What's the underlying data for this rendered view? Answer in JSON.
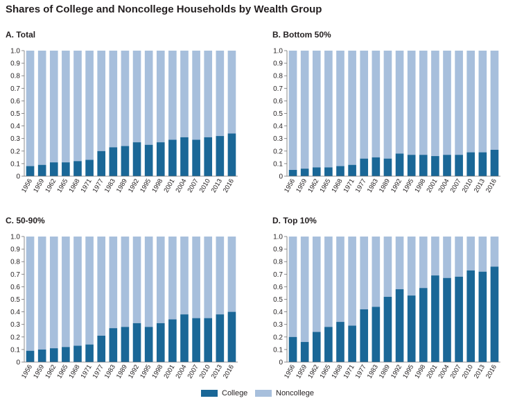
{
  "title": "Shares of College and Noncollege Households by Wealth Group",
  "colors": {
    "college": "#1a6797",
    "noncollege": "#a7bfdc",
    "axis": "#6d6e71",
    "text": "#231f20"
  },
  "legend": {
    "college": "College",
    "noncollege": "Noncollege"
  },
  "chart_data": [
    {
      "type": "bar",
      "stacked": true,
      "title": "A. Total",
      "categories": [
        "1956",
        "1959",
        "1962",
        "1965",
        "1968",
        "1971",
        "1977",
        "1983",
        "1989",
        "1992",
        "1995",
        "1998",
        "2001",
        "2004",
        "2007",
        "2010",
        "2013",
        "2016"
      ],
      "series": [
        {
          "name": "College",
          "values": [
            0.08,
            0.09,
            0.11,
            0.11,
            0.12,
            0.13,
            0.2,
            0.23,
            0.24,
            0.27,
            0.25,
            0.27,
            0.29,
            0.31,
            0.29,
            0.31,
            0.32,
            0.34
          ]
        },
        {
          "name": "Noncollege",
          "values": [
            0.92,
            0.91,
            0.89,
            0.89,
            0.88,
            0.87,
            0.8,
            0.77,
            0.76,
            0.73,
            0.75,
            0.73,
            0.71,
            0.69,
            0.71,
            0.69,
            0.68,
            0.66
          ]
        }
      ],
      "ylim": [
        0,
        1
      ],
      "yticks": [
        "0",
        "0.1",
        "0.2",
        "0.3",
        "0.4",
        "0.5",
        "0.6",
        "0.7",
        "0.8",
        "0.9",
        "1.0"
      ],
      "xlabel": "",
      "ylabel": "",
      "grid": false
    },
    {
      "type": "bar",
      "stacked": true,
      "title": "B. Bottom 50%",
      "categories": [
        "1956",
        "1959",
        "1962",
        "1965",
        "1968",
        "1971",
        "1977",
        "1983",
        "1989",
        "1992",
        "1995",
        "1998",
        "2001",
        "2004",
        "2007",
        "2010",
        "2013",
        "2016"
      ],
      "series": [
        {
          "name": "College",
          "values": [
            0.05,
            0.06,
            0.07,
            0.07,
            0.08,
            0.09,
            0.14,
            0.15,
            0.14,
            0.18,
            0.17,
            0.17,
            0.16,
            0.17,
            0.17,
            0.19,
            0.19,
            0.21
          ]
        },
        {
          "name": "Noncollege",
          "values": [
            0.95,
            0.94,
            0.93,
            0.93,
            0.92,
            0.91,
            0.86,
            0.85,
            0.86,
            0.82,
            0.83,
            0.83,
            0.84,
            0.83,
            0.83,
            0.81,
            0.81,
            0.79
          ]
        }
      ],
      "ylim": [
        0,
        1
      ],
      "yticks": [
        "0",
        "0.1",
        "0.2",
        "0.3",
        "0.4",
        "0.5",
        "0.6",
        "0.7",
        "0.8",
        "0.9",
        "1.0"
      ],
      "xlabel": "",
      "ylabel": "",
      "grid": false
    },
    {
      "type": "bar",
      "stacked": true,
      "title": "C. 50-90%",
      "categories": [
        "1956",
        "1959",
        "1962",
        "1965",
        "1968",
        "1971",
        "1977",
        "1983",
        "1989",
        "1992",
        "1995",
        "1998",
        "2001",
        "2004",
        "2007",
        "2010",
        "2013",
        "2016"
      ],
      "series": [
        {
          "name": "College",
          "values": [
            0.09,
            0.1,
            0.11,
            0.12,
            0.13,
            0.14,
            0.21,
            0.27,
            0.28,
            0.31,
            0.28,
            0.31,
            0.34,
            0.38,
            0.35,
            0.35,
            0.38,
            0.4
          ]
        },
        {
          "name": "Noncollege",
          "values": [
            0.91,
            0.9,
            0.89,
            0.88,
            0.87,
            0.86,
            0.79,
            0.73,
            0.72,
            0.69,
            0.72,
            0.69,
            0.66,
            0.62,
            0.65,
            0.65,
            0.62,
            0.6
          ]
        }
      ],
      "ylim": [
        0,
        1
      ],
      "yticks": [
        "0",
        "0.1",
        "0.2",
        "0.3",
        "0.4",
        "0.5",
        "0.6",
        "0.7",
        "0.8",
        "0.9",
        "1.0"
      ],
      "xlabel": "",
      "ylabel": "",
      "grid": false
    },
    {
      "type": "bar",
      "stacked": true,
      "title": "D. Top 10%",
      "categories": [
        "1956",
        "1959",
        "1962",
        "1965",
        "1968",
        "1971",
        "1977",
        "1983",
        "1989",
        "1992",
        "1995",
        "1998",
        "2001",
        "2004",
        "2007",
        "2010",
        "2013",
        "2016"
      ],
      "series": [
        {
          "name": "College",
          "values": [
            0.2,
            0.16,
            0.24,
            0.28,
            0.32,
            0.29,
            0.42,
            0.44,
            0.52,
            0.58,
            0.53,
            0.59,
            0.69,
            0.67,
            0.68,
            0.73,
            0.72,
            0.76
          ]
        },
        {
          "name": "Noncollege",
          "values": [
            0.8,
            0.84,
            0.76,
            0.72,
            0.68,
            0.71,
            0.58,
            0.56,
            0.48,
            0.42,
            0.47,
            0.41,
            0.31,
            0.33,
            0.32,
            0.27,
            0.28,
            0.24
          ]
        }
      ],
      "ylim": [
        0,
        1
      ],
      "yticks": [
        "0",
        "0.1",
        "0.2",
        "0.3",
        "0.4",
        "0.5",
        "0.6",
        "0.7",
        "0.8",
        "0.9",
        "1.0"
      ],
      "xlabel": "",
      "ylabel": "",
      "grid": false
    }
  ]
}
